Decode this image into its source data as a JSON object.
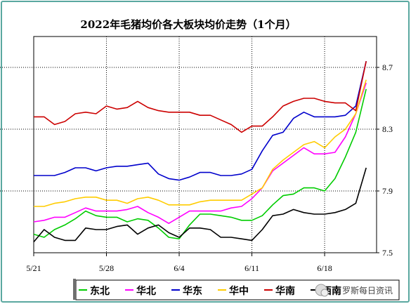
{
  "chart_data": {
    "type": "line",
    "title": "2022年毛猪均价各大板块均价走势（1个月）",
    "x_tick_labels": [
      "5/21",
      "5/28",
      "6/4",
      "6/11",
      "6/18"
    ],
    "y_tick_labels": [
      "7.5",
      "7.9",
      "8.3",
      "8.7"
    ],
    "ylim": [
      7.5,
      8.9
    ],
    "xlim": [
      0,
      33
    ],
    "grid": "vertical dotted lines at date ticks; horizontal dotted lines at 7.9, 8.3, 8.7",
    "legend_position": "bottom",
    "x": [
      0,
      1,
      2,
      3,
      4,
      5,
      6,
      7,
      8,
      9,
      10,
      11,
      12,
      13,
      14,
      15,
      16,
      17,
      18,
      19,
      20,
      21,
      22,
      23,
      24,
      25,
      26,
      27,
      28,
      29,
      30,
      31,
      32
    ],
    "series": [
      {
        "name": "东北",
        "color": "#00cc00",
        "values": [
          7.62,
          7.6,
          7.65,
          7.68,
          7.72,
          7.77,
          7.74,
          7.73,
          7.73,
          7.7,
          7.72,
          7.71,
          7.66,
          7.6,
          7.59,
          7.68,
          7.75,
          7.75,
          7.74,
          7.73,
          7.71,
          7.71,
          7.74,
          7.81,
          7.87,
          7.88,
          7.92,
          7.92,
          7.9,
          7.98,
          8.12,
          8.28,
          8.56
        ]
      },
      {
        "name": "华北",
        "color": "#ff00ff",
        "values": [
          7.7,
          7.71,
          7.73,
          7.73,
          7.76,
          7.79,
          7.77,
          7.77,
          7.77,
          7.78,
          7.8,
          7.76,
          7.73,
          7.69,
          7.73,
          7.77,
          7.77,
          7.77,
          7.77,
          7.79,
          7.8,
          7.85,
          7.92,
          8.03,
          8.08,
          8.13,
          8.18,
          8.14,
          8.14,
          8.15,
          8.25,
          8.4,
          8.6
        ]
      },
      {
        "name": "华东",
        "color": "#0000cc",
        "values": [
          8.0,
          8.0,
          8.0,
          8.02,
          8.05,
          8.05,
          8.03,
          8.05,
          8.06,
          8.06,
          8.07,
          8.08,
          8.01,
          7.98,
          7.97,
          7.99,
          8.02,
          8.02,
          8.0,
          8.0,
          8.01,
          8.04,
          8.16,
          8.26,
          8.28,
          8.37,
          8.41,
          8.38,
          8.38,
          8.38,
          8.39,
          8.45,
          8.74
        ]
      },
      {
        "name": "华中",
        "color": "#ffcc00",
        "values": [
          7.8,
          7.8,
          7.82,
          7.83,
          7.85,
          7.86,
          7.86,
          7.84,
          7.84,
          7.82,
          7.85,
          7.86,
          7.84,
          7.81,
          7.81,
          7.81,
          7.83,
          7.84,
          7.84,
          7.84,
          7.84,
          7.88,
          7.92,
          8.04,
          8.1,
          8.15,
          8.2,
          8.22,
          8.18,
          8.25,
          8.3,
          8.4,
          8.62
        ]
      },
      {
        "name": "华南",
        "color": "#cc0000",
        "values": [
          8.38,
          8.38,
          8.33,
          8.35,
          8.4,
          8.41,
          8.4,
          8.45,
          8.43,
          8.44,
          8.48,
          8.44,
          8.42,
          8.41,
          8.41,
          8.41,
          8.39,
          8.39,
          8.36,
          8.33,
          8.28,
          8.32,
          8.32,
          8.38,
          8.45,
          8.48,
          8.5,
          8.5,
          8.48,
          8.47,
          8.47,
          8.42,
          8.74
        ]
      },
      {
        "name": "西南",
        "color": "#000000",
        "values": [
          7.57,
          7.65,
          7.6,
          7.58,
          7.58,
          7.66,
          7.65,
          7.65,
          7.67,
          7.68,
          7.62,
          7.66,
          7.68,
          7.63,
          7.6,
          7.66,
          7.66,
          7.65,
          7.6,
          7.6,
          7.59,
          7.58,
          7.65,
          7.74,
          7.75,
          7.78,
          7.76,
          7.75,
          7.75,
          7.76,
          7.78,
          7.82,
          8.05
        ]
      }
    ]
  },
  "watermark_text": "罗斯每日资讯"
}
